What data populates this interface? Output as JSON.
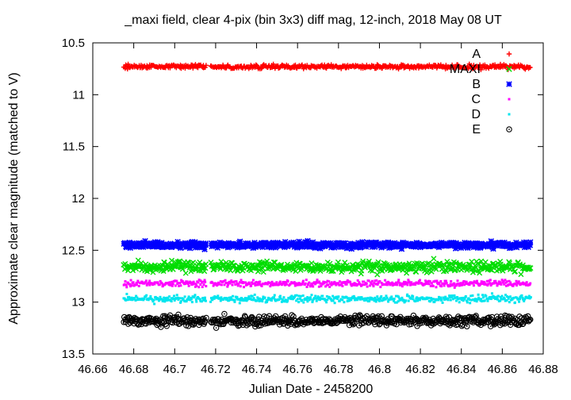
{
  "chart_data": {
    "type": "scatter",
    "title": "_maxi field, clear 4-pix (bin 3x3) diff mag, 12-inch, 2018 May 08 UT",
    "xlabel": "Julian Date - 2458200",
    "ylabel": "Approximate clear magnitude (matched to V)",
    "xlim": [
      46.66,
      46.88
    ],
    "ylim": [
      13.5,
      10.5
    ],
    "y_inverted": true,
    "grid": false,
    "legend_position": "top-right",
    "x_ticks": [
      "46.66",
      "46.68",
      "46.7",
      "46.72",
      "46.74",
      "46.76",
      "46.78",
      "46.8",
      "46.82",
      "46.84",
      "46.86",
      "46.88"
    ],
    "y_ticks": [
      "10.5",
      "11",
      "11.5",
      "12",
      "12.5",
      "13",
      "13.5"
    ],
    "observing_window": [
      46.675,
      46.874
    ],
    "data_gap": [
      46.7155,
      46.7175
    ],
    "series": [
      {
        "name": "A",
        "color": "#ff0000",
        "marker": "plus",
        "mean_mag": 10.73,
        "scatter_mag": 0.02
      },
      {
        "name": "MAXI",
        "color": "#00dd00",
        "marker": "cross",
        "mean_mag": 12.66,
        "scatter_mag": 0.05
      },
      {
        "name": "B",
        "color": "#0000ff",
        "marker": "star",
        "mean_mag": 12.45,
        "scatter_mag": 0.03
      },
      {
        "name": "C",
        "color": "#ff00ff",
        "marker": "square",
        "mean_mag": 12.82,
        "scatter_mag": 0.03
      },
      {
        "name": "D",
        "color": "#00e5ee",
        "marker": "square",
        "mean_mag": 12.97,
        "scatter_mag": 0.035
      },
      {
        "name": "E",
        "color": "#000000",
        "marker": "circle",
        "mean_mag": 13.18,
        "scatter_mag": 0.05
      }
    ]
  }
}
